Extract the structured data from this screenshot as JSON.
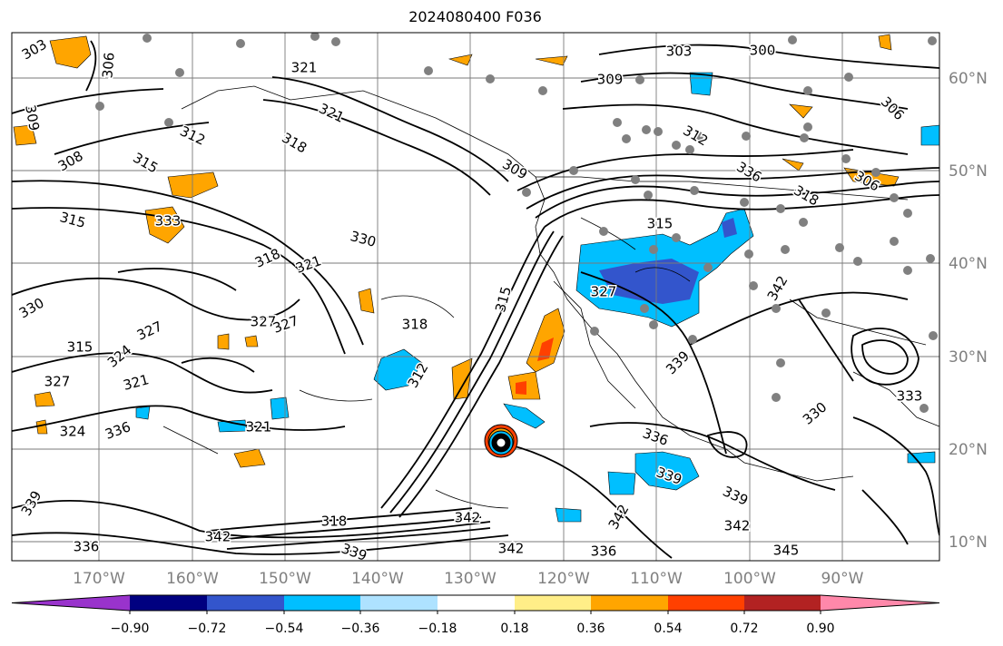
{
  "title": "2024080400 F036",
  "longitude_labels": [
    "170°W",
    "160°W",
    "150°W",
    "140°W",
    "130°W",
    "120°W",
    "110°W",
    "100°W",
    "90°W"
  ],
  "latitude_labels": [
    "60°N",
    "50°N",
    "40°N",
    "30°N",
    "20°N",
    "10°N"
  ],
  "colorbar": {
    "ticks": [
      "−0.90",
      "−0.72",
      "−0.54",
      "−0.36",
      "−0.18",
      "0.18",
      "0.36",
      "0.54",
      "0.72",
      "0.90"
    ],
    "colors": [
      "#9933cc",
      "#000080",
      "#3355cc",
      "#00bfff",
      "#aee2ff",
      "#ffffff",
      "#ffee88",
      "#ffa500",
      "#ff4000",
      "#b22222",
      "#ff88aa"
    ]
  },
  "contour_labels": [
    "303",
    "306",
    "309",
    "303",
    "300",
    "309",
    "306",
    "308",
    "312",
    "315",
    "318",
    "321",
    "321",
    "312",
    "306",
    "309",
    "315",
    "333",
    "330",
    "330",
    "327",
    "318",
    "321",
    "327",
    "327",
    "318",
    "315",
    "318",
    "336",
    "312",
    "315",
    "315",
    "324",
    "327",
    "321",
    "321",
    "324",
    "336",
    "339",
    "342",
    "330",
    "333",
    "336",
    "339",
    "342",
    "339",
    "342",
    "345",
    "339",
    "342",
    "339",
    "342",
    "318",
    "336",
    "342",
    "327",
    "336"
  ]
}
